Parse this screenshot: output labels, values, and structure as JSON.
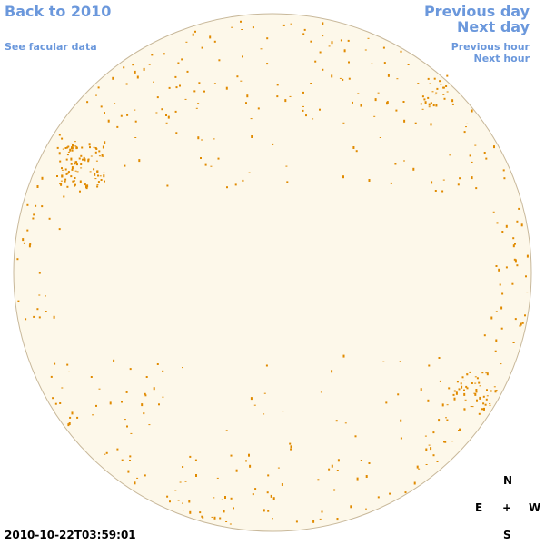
{
  "links": {
    "back": "Back to 2010",
    "facular": "See facular data",
    "previous_day": "Previous day",
    "next_day": "Next day",
    "previous_hour": "Previous hour",
    "next_hour": "Next hour"
  },
  "compass": {
    "north": "N",
    "east": "E",
    "center": "+",
    "west": "W",
    "south": "S"
  },
  "timestamp": "2010-10-22T03:59:01"
}
